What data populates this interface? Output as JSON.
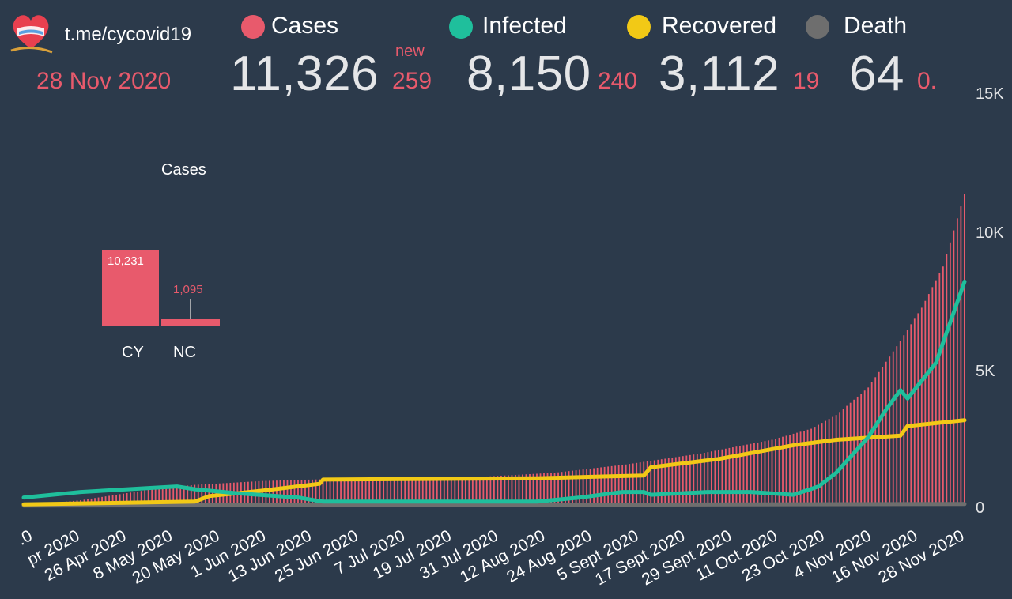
{
  "header": {
    "channel": "t.me/cycovid19",
    "date": "28 Nov 2020",
    "new_label": "new"
  },
  "stats": {
    "cases": {
      "label": "Cases",
      "value": "11,326",
      "delta": "259"
    },
    "infected": {
      "label": "Infected",
      "value": "8,150",
      "delta": "240"
    },
    "recovered": {
      "label": "Recovered",
      "value": "3,112",
      "delta": "19"
    },
    "death": {
      "label": "Death",
      "value": "64",
      "delta": "0."
    }
  },
  "colors": {
    "background": "#2c3a4b",
    "cases": "#e85a6c",
    "infected": "#1fbf9c",
    "recovered": "#f2c916",
    "death": "#6e6e6e",
    "text": "#e5e6e8"
  },
  "icons": {
    "logo": "heart-flag-logo"
  },
  "chart_data": [
    {
      "type": "bar+line",
      "x_start_date": "2020-03-09",
      "x_end_date": "2020-11-28",
      "ylim": [
        0,
        15000
      ],
      "y_ticks": [
        "0",
        "5K",
        "10K",
        "15K"
      ],
      "x_tick_labels": [
        ".0",
        "pr 2020",
        "26 Apr 2020",
        "8 May 2020",
        "20 May 2020",
        "1 Jun 2020",
        "13 Jun 2020",
        "25 Jun 2020",
        "7 Jul 2020",
        "19 Jul 2020",
        "31 Jul 2020",
        "12 Aug 2020",
        "24 Aug 2020",
        "5 Sept 2020",
        "17 Sept 2020",
        "29 Sept 2020",
        "11 Oct 2020",
        "23 Oct 2020",
        "4 Nov 2020",
        "16 Nov 2020",
        "28 Nov 2020"
      ],
      "series": [
        {
          "name": "Cases",
          "style": "bar",
          "points": [
            [
              "2020-03-09",
              0
            ],
            [
              "2020-03-25",
              200
            ],
            [
              "2020-04-14",
              600
            ],
            [
              "2020-04-26",
              760
            ],
            [
              "2020-05-15",
              900
            ],
            [
              "2020-06-05",
              980
            ],
            [
              "2020-07-15",
              1050
            ],
            [
              "2020-08-05",
              1200
            ],
            [
              "2020-08-25",
              1500
            ],
            [
              "2020-09-15",
              1900
            ],
            [
              "2020-10-05",
              2400
            ],
            [
              "2020-10-16",
              2800
            ],
            [
              "2020-10-23",
              3300
            ],
            [
              "2020-11-01",
              4300
            ],
            [
              "2020-11-09",
              5800
            ],
            [
              "2020-11-16",
              7200
            ],
            [
              "2020-11-22",
              8700
            ],
            [
              "2020-11-28",
              11326
            ]
          ]
        },
        {
          "name": "Infected",
          "style": "line",
          "points": [
            [
              "2020-03-09",
              300
            ],
            [
              "2020-03-25",
              500
            ],
            [
              "2020-04-14",
              650
            ],
            [
              "2020-04-21",
              700
            ],
            [
              "2020-04-26",
              600
            ],
            [
              "2020-05-08",
              450
            ],
            [
              "2020-05-25",
              300
            ],
            [
              "2020-06-01",
              150
            ],
            [
              "2020-06-30",
              150
            ],
            [
              "2020-07-31",
              150
            ],
            [
              "2020-08-12",
              300
            ],
            [
              "2020-08-24",
              500
            ],
            [
              "2020-08-30",
              500
            ],
            [
              "2020-09-01",
              400
            ],
            [
              "2020-09-17",
              500
            ],
            [
              "2020-09-29",
              500
            ],
            [
              "2020-10-11",
              400
            ],
            [
              "2020-10-18",
              700
            ],
            [
              "2020-10-23",
              1200
            ],
            [
              "2020-11-01",
              2500
            ],
            [
              "2020-11-06",
              3500
            ],
            [
              "2020-11-10",
              4200
            ],
            [
              "2020-11-12",
              3900
            ],
            [
              "2020-11-20",
              5200
            ],
            [
              "2020-11-28",
              8150
            ]
          ]
        },
        {
          "name": "Recovered",
          "style": "line",
          "points": [
            [
              "2020-03-09",
              50
            ],
            [
              "2020-04-26",
              150
            ],
            [
              "2020-04-30",
              350
            ],
            [
              "2020-05-15",
              550
            ],
            [
              "2020-05-31",
              800
            ],
            [
              "2020-06-01",
              950
            ],
            [
              "2020-07-31",
              1000
            ],
            [
              "2020-08-30",
              1100
            ],
            [
              "2020-09-01",
              1400
            ],
            [
              "2020-09-20",
              1700
            ],
            [
              "2020-10-11",
              2200
            ],
            [
              "2020-10-23",
              2400
            ],
            [
              "2020-11-10",
              2550
            ],
            [
              "2020-11-12",
              2900
            ],
            [
              "2020-11-28",
              3112
            ]
          ]
        },
        {
          "name": "Death",
          "style": "line",
          "points": [
            [
              "2020-03-09",
              5
            ],
            [
              "2020-11-28",
              64
            ]
          ]
        }
      ]
    },
    {
      "type": "bar",
      "title": "Cases",
      "categories": [
        "CY",
        "NC"
      ],
      "values": [
        10231,
        1095
      ],
      "value_labels": [
        "10,231",
        "1,095"
      ]
    }
  ]
}
